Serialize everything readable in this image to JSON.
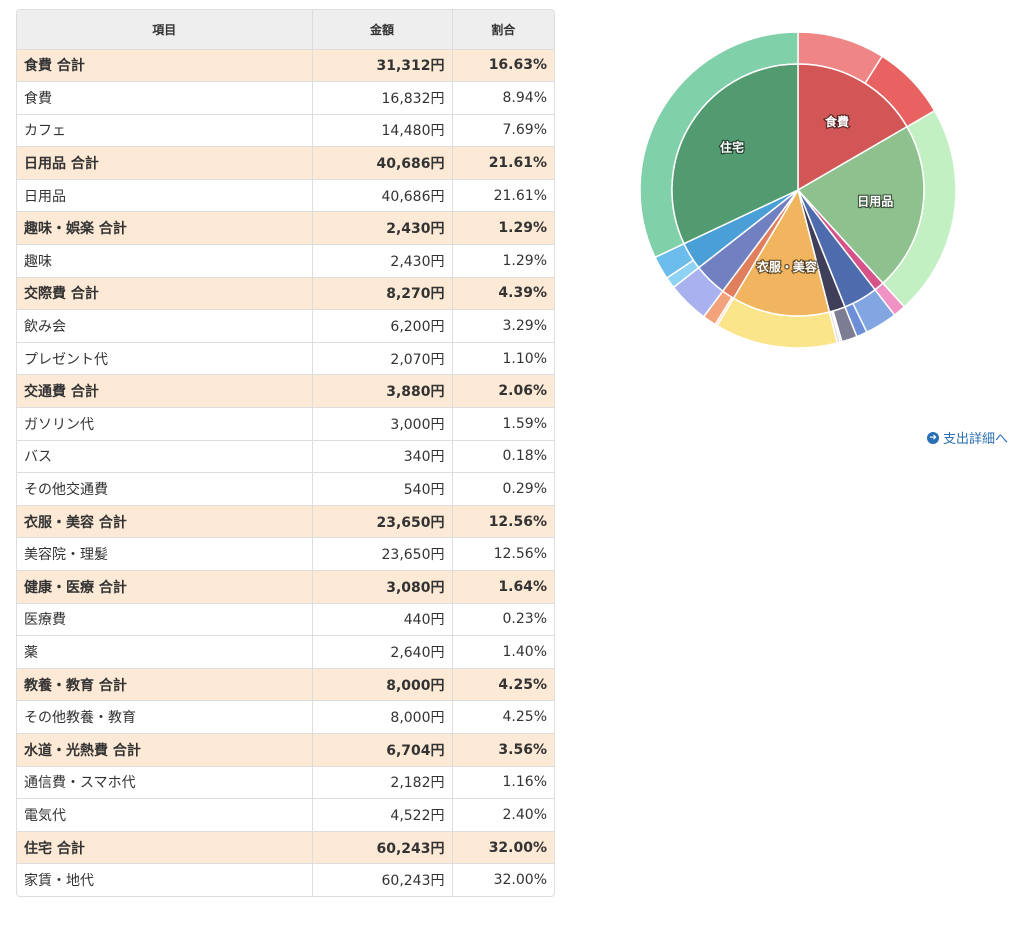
{
  "table": {
    "headers": {
      "item": "項目",
      "amount": "金額",
      "ratio": "割合"
    },
    "rows": [
      {
        "item": "食費 合計",
        "amount": "31,312円",
        "ratio": "16.63%",
        "total": true
      },
      {
        "item": "食費",
        "amount": "16,832円",
        "ratio": "8.94%",
        "total": false
      },
      {
        "item": "カフェ",
        "amount": "14,480円",
        "ratio": "7.69%",
        "total": false
      },
      {
        "item": "日用品 合計",
        "amount": "40,686円",
        "ratio": "21.61%",
        "total": true
      },
      {
        "item": "日用品",
        "amount": "40,686円",
        "ratio": "21.61%",
        "total": false
      },
      {
        "item": "趣味・娯楽 合計",
        "amount": "2,430円",
        "ratio": "1.29%",
        "total": true
      },
      {
        "item": "趣味",
        "amount": "2,430円",
        "ratio": "1.29%",
        "total": false
      },
      {
        "item": "交際費 合計",
        "amount": "8,270円",
        "ratio": "4.39%",
        "total": true
      },
      {
        "item": "飲み会",
        "amount": "6,200円",
        "ratio": "3.29%",
        "total": false
      },
      {
        "item": "プレゼント代",
        "amount": "2,070円",
        "ratio": "1.10%",
        "total": false
      },
      {
        "item": "交通費 合計",
        "amount": "3,880円",
        "ratio": "2.06%",
        "total": true
      },
      {
        "item": "ガソリン代",
        "amount": "3,000円",
        "ratio": "1.59%",
        "total": false
      },
      {
        "item": "バス",
        "amount": "340円",
        "ratio": "0.18%",
        "total": false
      },
      {
        "item": "その他交通費",
        "amount": "540円",
        "ratio": "0.29%",
        "total": false
      },
      {
        "item": "衣服・美容 合計",
        "amount": "23,650円",
        "ratio": "12.56%",
        "total": true
      },
      {
        "item": "美容院・理髪",
        "amount": "23,650円",
        "ratio": "12.56%",
        "total": false
      },
      {
        "item": "健康・医療 合計",
        "amount": "3,080円",
        "ratio": "1.64%",
        "total": true
      },
      {
        "item": "医療費",
        "amount": "440円",
        "ratio": "0.23%",
        "total": false
      },
      {
        "item": "薬",
        "amount": "2,640円",
        "ratio": "1.40%",
        "total": false
      },
      {
        "item": "教養・教育 合計",
        "amount": "8,000円",
        "ratio": "4.25%",
        "total": true
      },
      {
        "item": "その他教養・教育",
        "amount": "8,000円",
        "ratio": "4.25%",
        "total": false
      },
      {
        "item": "水道・光熱費 合計",
        "amount": "6,704円",
        "ratio": "3.56%",
        "total": true
      },
      {
        "item": "通信費・スマホ代",
        "amount": "2,182円",
        "ratio": "1.16%",
        "total": false
      },
      {
        "item": "電気代",
        "amount": "4,522円",
        "ratio": "2.40%",
        "total": false
      },
      {
        "item": "住宅 合計",
        "amount": "60,243円",
        "ratio": "32.00%",
        "total": true
      },
      {
        "item": "家賃・地代",
        "amount": "60,243円",
        "ratio": "32.00%",
        "total": false
      }
    ]
  },
  "chart_data": {
    "type": "pie",
    "start_angle_deg": 0,
    "direction": "clockwise",
    "inner": [
      {
        "name": "食費",
        "value": 16.63,
        "color": "#d25656",
        "label": true
      },
      {
        "name": "日用品",
        "value": 21.61,
        "color": "#8fc18f",
        "label": true
      },
      {
        "name": "趣味・娯楽",
        "value": 1.29,
        "color": "#d6538a",
        "label": false
      },
      {
        "name": "交際費",
        "value": 4.39,
        "color": "#4e6cad",
        "label": false
      },
      {
        "name": "交通費",
        "value": 2.06,
        "color": "#3f3f5a",
        "label": false
      },
      {
        "name": "衣服・美容",
        "value": 12.56,
        "color": "#f0b55e",
        "label": true
      },
      {
        "name": "健康・医療",
        "value": 1.64,
        "color": "#e07f5e",
        "label": false
      },
      {
        "name": "教養・教育",
        "value": 4.25,
        "color": "#7180c0",
        "label": false
      },
      {
        "name": "水道・光熱費",
        "value": 3.56,
        "color": "#4a9fd6",
        "label": false
      },
      {
        "name": "住宅",
        "value": 32.0,
        "color": "#529a70",
        "label": true
      }
    ],
    "outer": [
      {
        "name": "食費",
        "value": 8.94,
        "color": "#ef8585"
      },
      {
        "name": "カフェ",
        "value": 7.69,
        "color": "#e86262"
      },
      {
        "name": "日用品",
        "value": 21.61,
        "color": "#c3f0c3"
      },
      {
        "name": "趣味",
        "value": 1.29,
        "color": "#f092c3"
      },
      {
        "name": "飲み会",
        "value": 3.29,
        "color": "#82a6e2"
      },
      {
        "name": "プレゼント代",
        "value": 1.1,
        "color": "#6d8fd8"
      },
      {
        "name": "ガソリン代",
        "value": 1.59,
        "color": "#7c7c92"
      },
      {
        "name": "バス",
        "value": 0.18,
        "color": "#a8a8bd"
      },
      {
        "name": "その他交通費",
        "value": 0.29,
        "color": "#d9d9e3"
      },
      {
        "name": "美容院・理髪",
        "value": 12.56,
        "color": "#fbe58a"
      },
      {
        "name": "医療費",
        "value": 0.23,
        "color": "#f7c6a6"
      },
      {
        "name": "薬",
        "value": 1.4,
        "color": "#f3a37b"
      },
      {
        "name": "その他教養・教育",
        "value": 4.25,
        "color": "#a9b2ee"
      },
      {
        "name": "通信費・スマホ代",
        "value": 1.16,
        "color": "#8ed2f4"
      },
      {
        "name": "電気代",
        "value": 2.4,
        "color": "#6cbcec"
      },
      {
        "name": "家賃・地代",
        "value": 32.0,
        "color": "#80d0aa"
      }
    ]
  },
  "link": {
    "detail_label": "支出詳細へ",
    "icon": "circle-arrow-right-icon",
    "color": "#2a6fb5"
  }
}
